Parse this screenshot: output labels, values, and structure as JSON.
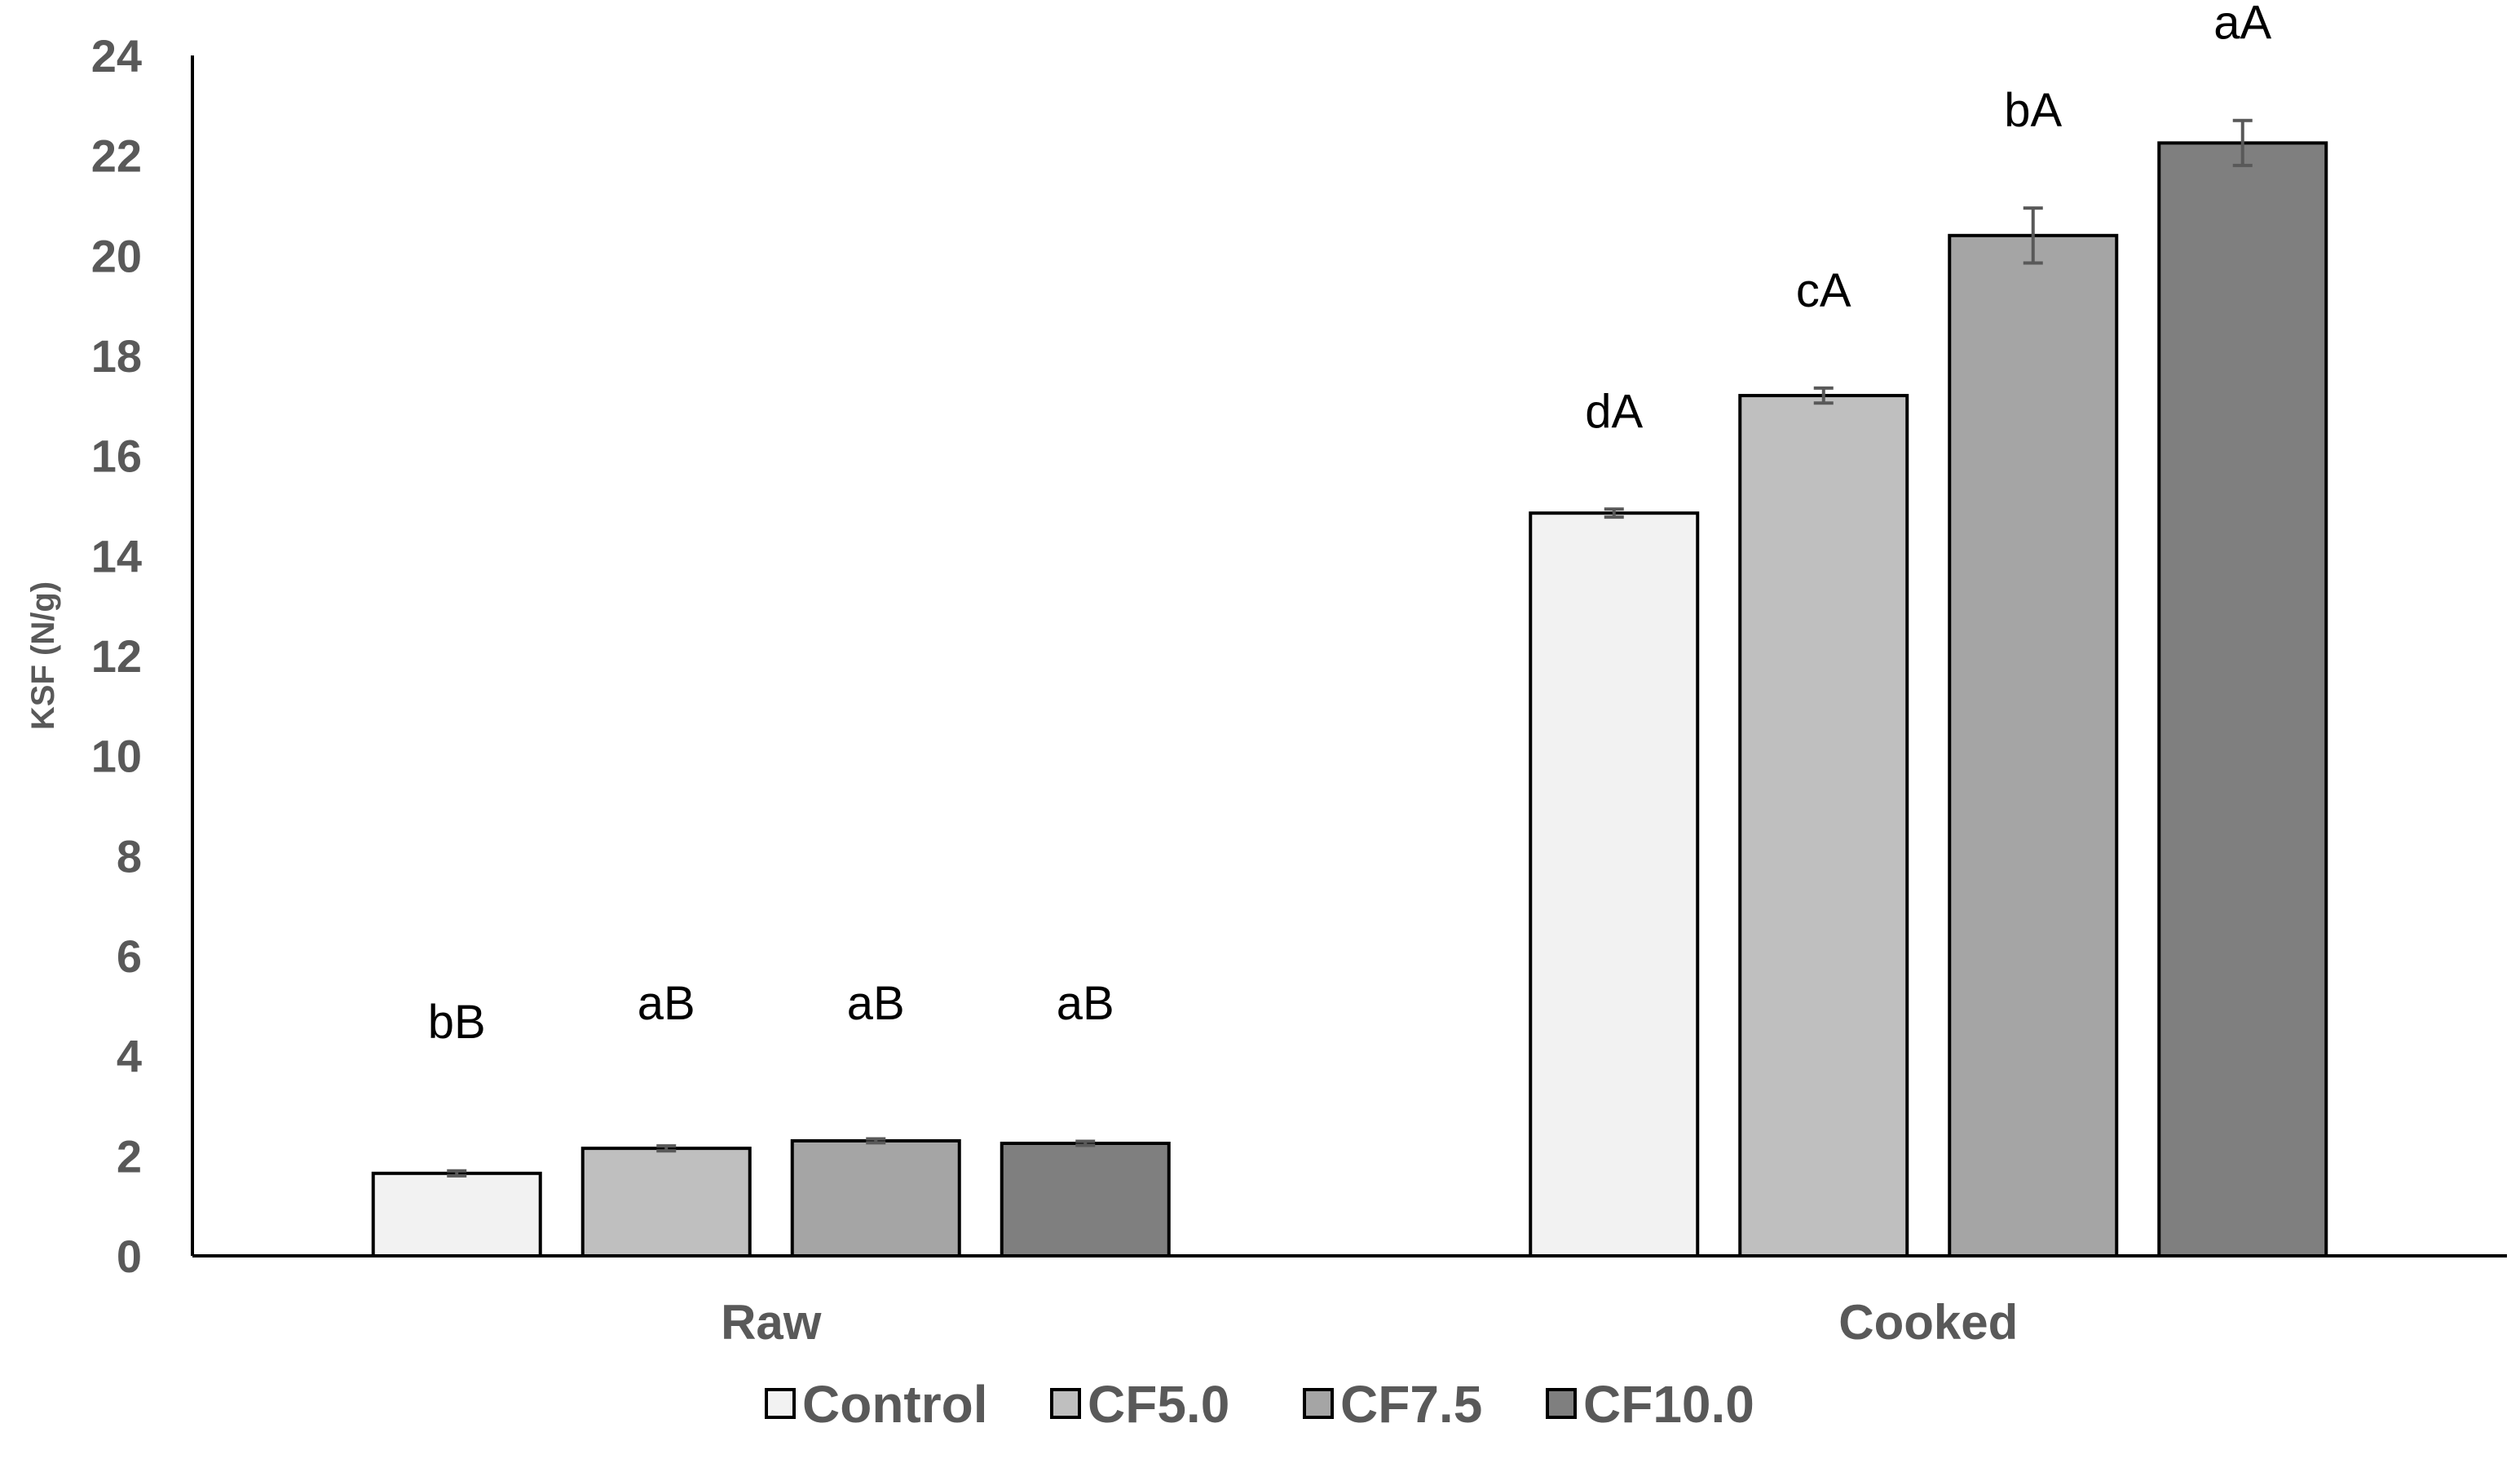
{
  "chart_data": {
    "type": "bar",
    "title": "",
    "xlabel": "",
    "ylabel": "KSF (N/g)",
    "ylim": [
      0,
      24
    ],
    "yticks": [
      0,
      2,
      4,
      6,
      8,
      10,
      12,
      14,
      16,
      18,
      20,
      22,
      24
    ],
    "categories": [
      "Raw",
      "Cooked"
    ],
    "grid": false,
    "legend_position": "bottom",
    "series": [
      {
        "name": "Control",
        "color": "#f2f2f2",
        "values": [
          1.65,
          14.85
        ],
        "errors": [
          0.05,
          0.08
        ],
        "labels": [
          "bB",
          "dA"
        ]
      },
      {
        "name": "CF5.0",
        "color": "#bfbfbf",
        "values": [
          2.15,
          17.2
        ],
        "errors": [
          0.05,
          0.15
        ],
        "labels": [
          "aB",
          "cA"
        ]
      },
      {
        "name": "CF7.5",
        "color": "#a5a5a5",
        "values": [
          2.3,
          20.4
        ],
        "errors": [
          0.04,
          0.55
        ],
        "labels": [
          "aB",
          "bA"
        ]
      },
      {
        "name": "CF10.0",
        "color": "#7f7f7f",
        "values": [
          2.25,
          22.25
        ],
        "errors": [
          0.04,
          0.45
        ],
        "labels": [
          "aB",
          "aA"
        ]
      }
    ]
  }
}
